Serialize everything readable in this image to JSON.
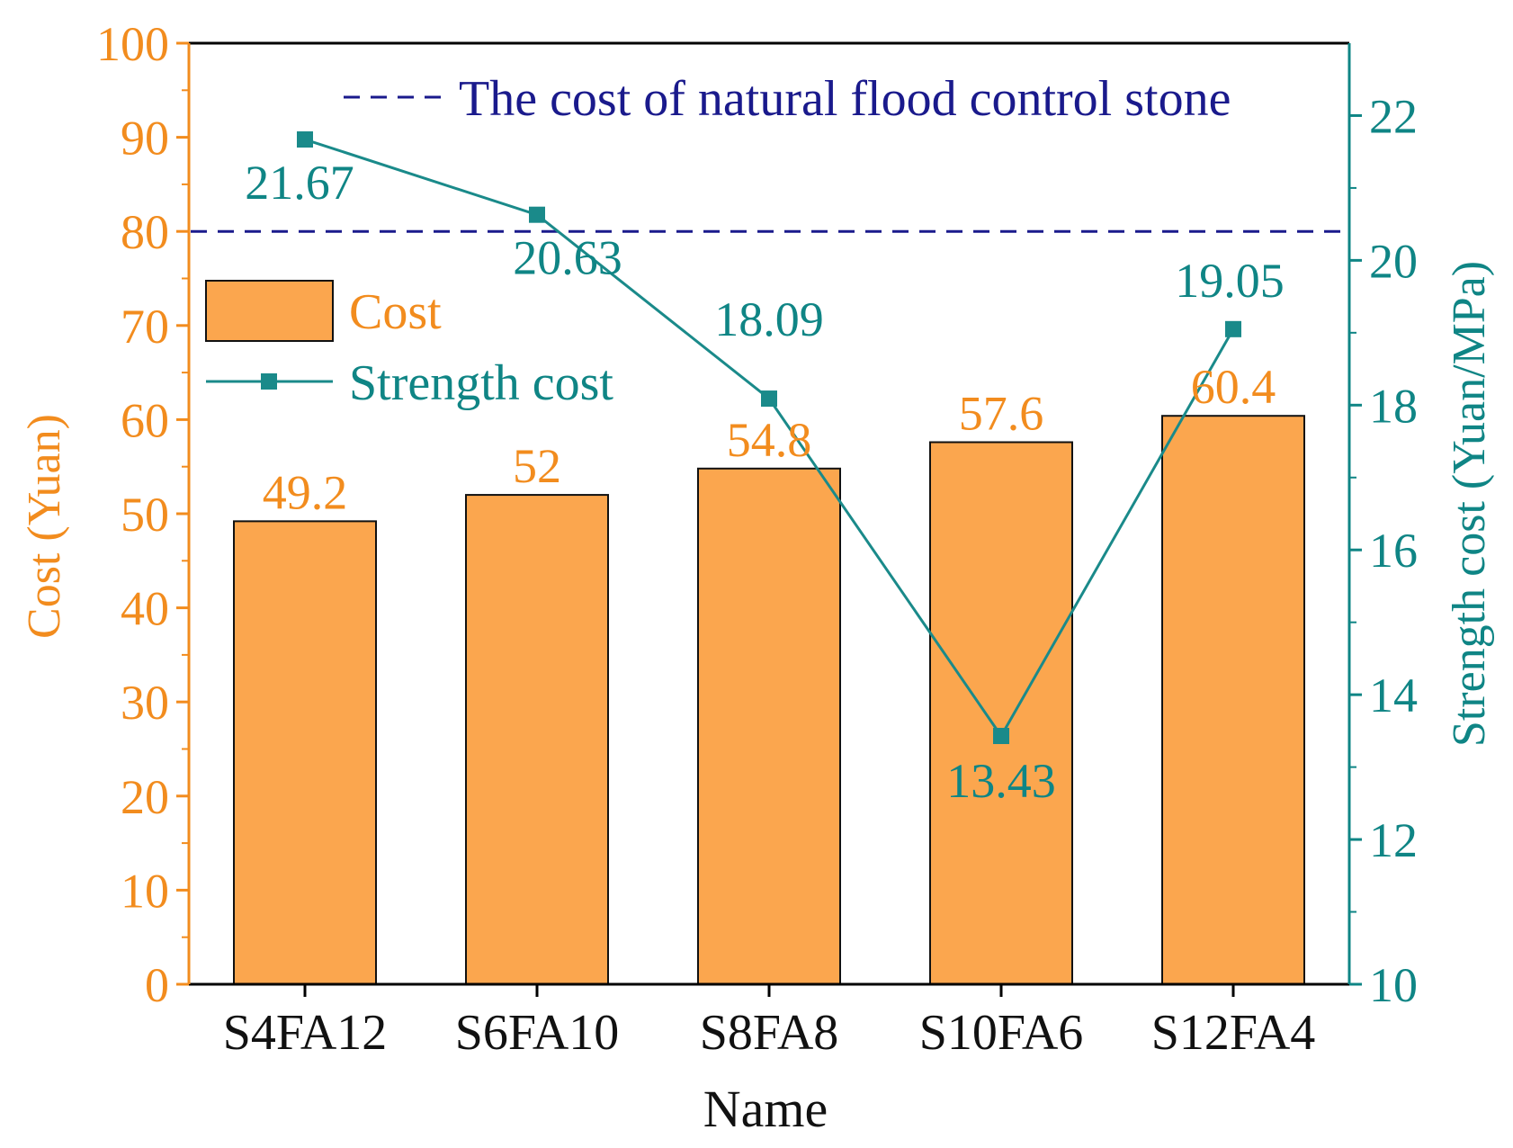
{
  "chart_data": {
    "type": "bar",
    "title": "",
    "xlabel": "Name",
    "ylabel": "Cost (Yuan)",
    "y2label": "Strength cost (Yuan/MPa)",
    "categories": [
      "S4FA12",
      "S6FA10",
      "S8FA8",
      "S10FA6",
      "S12FA4"
    ],
    "ylim": [
      0,
      100
    ],
    "yticks": [
      0,
      10,
      20,
      30,
      40,
      50,
      60,
      70,
      80,
      90,
      100
    ],
    "y2lim": [
      10,
      23
    ],
    "y2ticks": [
      10,
      12,
      14,
      16,
      18,
      20,
      22
    ],
    "series": [
      {
        "name": "Cost",
        "kind": "bar",
        "axis": "left",
        "values": [
          49.2,
          52,
          54.8,
          57.6,
          60.4
        ],
        "labels": [
          "49.2",
          "52",
          "54.8",
          "57.6",
          "60.4"
        ]
      },
      {
        "name": "Strength cost",
        "kind": "line",
        "axis": "right",
        "values": [
          21.67,
          20.63,
          18.09,
          13.43,
          19.05
        ],
        "labels": [
          "21.67",
          "20.63",
          "18.09",
          "13.43",
          "19.05"
        ]
      }
    ],
    "reference_line": {
      "name": "The cost of natural flood control stone",
      "value": 80,
      "axis": "left"
    },
    "legend_position": "upper-left",
    "colors": {
      "bar_fill": "#FBA64E",
      "left_axis": "#F28C1E",
      "right_axis": "#0F8585",
      "line": "#1A8A8A",
      "reference": "#1A1A8C",
      "frame": "#000000"
    }
  }
}
